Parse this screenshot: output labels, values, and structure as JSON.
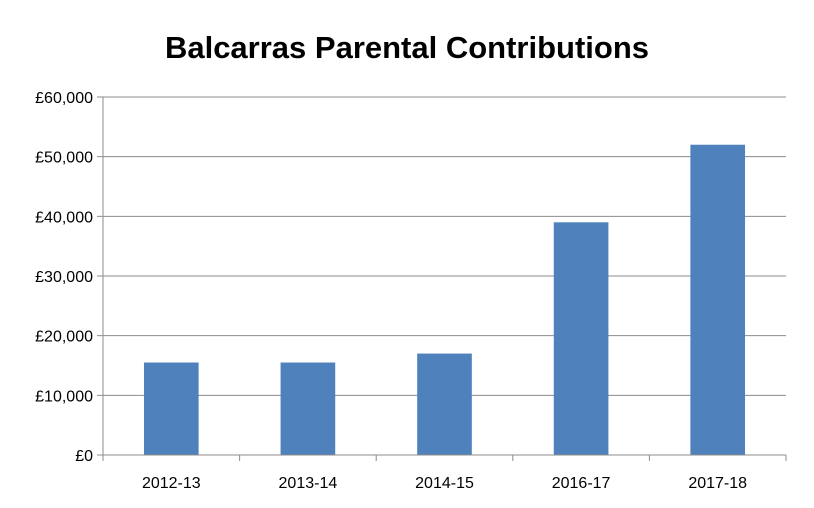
{
  "chart_data": {
    "type": "bar",
    "title": "Balcarras Parental Contributions",
    "xlabel": "",
    "ylabel": "",
    "categories": [
      "2012-13",
      "2013-14",
      "2014-15",
      "2016-17",
      "2017-18"
    ],
    "values": [
      15500,
      15500,
      17000,
      39000,
      52000
    ],
    "ylim": [
      0,
      60000
    ],
    "yticks": [
      0,
      10000,
      20000,
      30000,
      40000,
      50000,
      60000
    ],
    "ytick_labels": [
      "£0",
      "£10,000",
      "£20,000",
      "£30,000",
      "£40,000",
      "£50,000",
      "£60,000"
    ],
    "grid": true,
    "legend": "none",
    "colors": {
      "bar": "#4f81bd",
      "gridline": "#8c8c8c"
    }
  }
}
